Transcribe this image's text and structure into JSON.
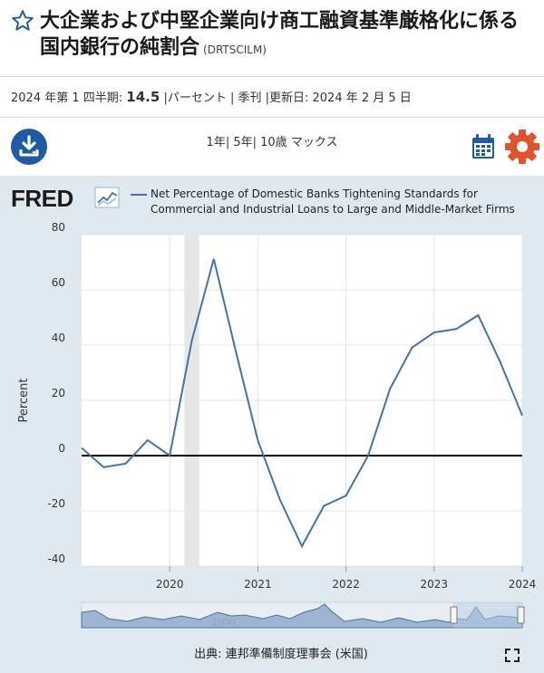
{
  "header": {
    "title": "大企業および中堅企業向け商工融資基準厳格化に係る国内銀行の純割合",
    "series_id": "(DRTSCILM)"
  },
  "meta": {
    "period": "2024 年第 1 四半期:",
    "value": "14.5",
    "units": "|パーセント",
    "frequency": "| 季刊",
    "updated": "|更新日: 2024 年 2 月 5 日"
  },
  "toolbar": {
    "ranges": [
      "1年",
      "5年",
      "10歳",
      "マックス"
    ]
  },
  "brand": {
    "logo_text": "FRED"
  },
  "source": {
    "text": "出典: 連邦準備制度理事会 (米国)"
  },
  "colors": {
    "line": "#4572a7",
    "accent_blue": "#1f5aa6",
    "gear": "#e0532f",
    "recession": "#e6e6e6",
    "chart_bg": "#e1e9f0"
  },
  "chart_data": {
    "type": "line",
    "title": "",
    "legend": "Net Percentage of Domestic Banks Tightening Standards for Commercial and Industrial Loans to Large and Middle-Market Firms",
    "ylabel": "Percent",
    "xlabel": "",
    "ylim": [
      -40,
      80
    ],
    "y_ticks": [
      80,
      60,
      40,
      20,
      0,
      -20,
      -40
    ],
    "x_ticks": [
      "2020",
      "2021",
      "2022",
      "2023",
      "2024"
    ],
    "navigator_label": "2000",
    "x": [
      "2019-01",
      "2019-04",
      "2019-07",
      "2019-10",
      "2020-01",
      "2020-04",
      "2020-07",
      "2020-10",
      "2021-01",
      "2021-04",
      "2021-07",
      "2021-10",
      "2022-01",
      "2022-04",
      "2022-07",
      "2022-10",
      "2023-01",
      "2023-04",
      "2023-07",
      "2023-10",
      "2024-01"
    ],
    "series": [
      {
        "values": [
          2.8,
          -4.2,
          -2.9,
          5.6,
          0.0,
          41.5,
          71.2,
          37.7,
          5.5,
          -15.9,
          -32.8,
          -18.2,
          -14.5,
          -0.1,
          24.2,
          39.1,
          44.6,
          45.8,
          50.8,
          33.9,
          14.5
        ]
      }
    ],
    "recession": {
      "start": "2020-03",
      "end": "2020-05"
    },
    "grid": true,
    "zero_line": true,
    "legend_placement": "top"
  }
}
